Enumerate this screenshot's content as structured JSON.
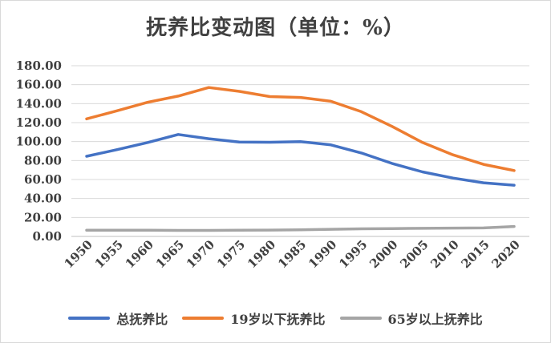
{
  "chart_data": {
    "type": "line",
    "title": "抚养比变动图（单位：%）",
    "categories": [
      "1950",
      "1955",
      "1960",
      "1965",
      "1970",
      "1975",
      "1980",
      "1985",
      "1990",
      "1995",
      "2000",
      "2005",
      "2010",
      "2015",
      "2020"
    ],
    "ylim": [
      0,
      180
    ],
    "yticks": [
      "0.00",
      "20.00",
      "40.00",
      "60.00",
      "80.00",
      "100.00",
      "120.00",
      "140.00",
      "160.00",
      "180.00"
    ],
    "grid": true,
    "legend_position": "bottom",
    "series": [
      {
        "name": "总抚养比",
        "color": "#4472c4",
        "values": [
          84.5,
          91.5,
          99.0,
          107.5,
          103.0,
          99.5,
          99.3,
          100.0,
          96.5,
          88.0,
          77.0,
          68.0,
          61.5,
          56.5,
          54.0
        ]
      },
      {
        "name": "19岁以下抚养比",
        "color": "#ed7d31",
        "values": [
          124.0,
          132.5,
          141.5,
          148.0,
          157.0,
          153.0,
          147.5,
          146.5,
          142.5,
          131.5,
          116.0,
          99.0,
          86.0,
          76.0,
          69.5
        ]
      },
      {
        "name": "65岁以上抚养比",
        "color": "#a5a5a5",
        "values": [
          6.5,
          6.5,
          6.5,
          6.3,
          6.3,
          6.5,
          6.7,
          7.0,
          7.5,
          8.0,
          8.3,
          8.5,
          8.8,
          9.0,
          10.5
        ]
      }
    ]
  }
}
